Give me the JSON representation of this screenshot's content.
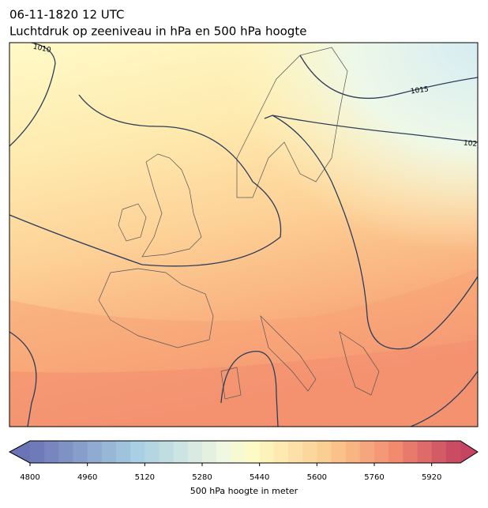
{
  "header": {
    "date": "06-11-1820 12 UTC",
    "title": "Luchtdruk op zeeniveau in hPa en 500 hPa hoogte"
  },
  "map": {
    "contour_labels": [
      "1010",
      "1015",
      "102"
    ]
  },
  "colorbar": {
    "label": "500 hPa hoogte in meter",
    "range": [
      4800,
      6000
    ],
    "step": 40,
    "ticks": [
      4800,
      4960,
      5120,
      5280,
      5440,
      5600,
      5760,
      5920
    ]
  }
}
